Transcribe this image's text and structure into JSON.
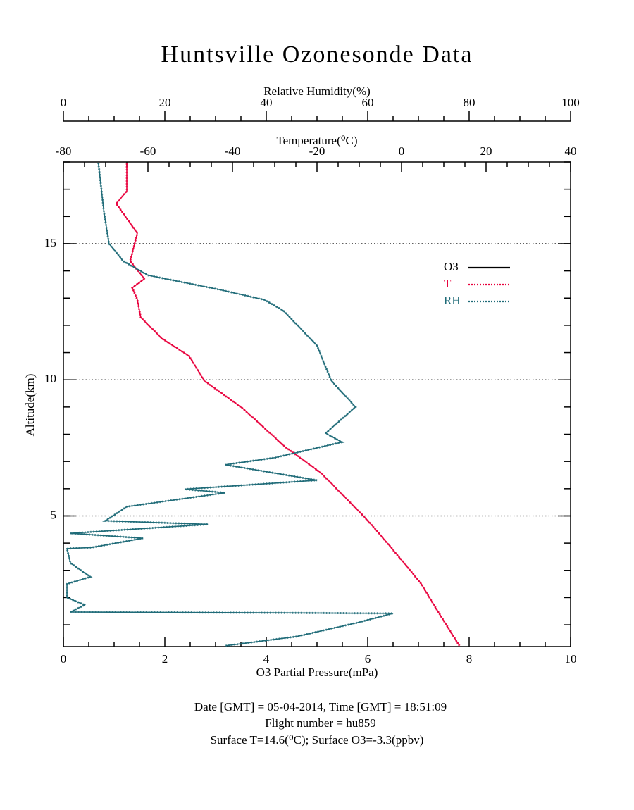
{
  "chart_data": {
    "type": "line",
    "title": "Huntsville Ozonesonde Data",
    "xlabel": "O3 Partial Pressure(mPa)",
    "xlim": [
      0,
      10
    ],
    "xticks": [
      0,
      2,
      4,
      6,
      8,
      10
    ],
    "x2label": "Relative Humidity(%)",
    "x2lim": [
      0,
      100
    ],
    "x2ticks": [
      0,
      20,
      40,
      60,
      80,
      100
    ],
    "x3label": "Temperature(⁰C)",
    "x3lim": [
      -80,
      40
    ],
    "x3ticks": [
      -80,
      -60,
      -40,
      -20,
      0,
      20,
      40
    ],
    "ylabel": "Altitude(km)",
    "ylim": [
      0.2,
      18
    ],
    "yticks": [
      5,
      10,
      15
    ],
    "grid": true,
    "legend": "upper right",
    "series": [
      {
        "name": "O3",
        "color": "#000000",
        "axis": "x",
        "values": [],
        "y": []
      },
      {
        "name": "T",
        "color": "#e8003c",
        "axis": "x3",
        "values": [
          13.7,
          8.3,
          4.7,
          -0.8,
          -5,
          -8.7,
          -19,
          -27.5,
          -37.5,
          -46.7,
          -50.3,
          -56.7,
          -61.7,
          -62.5,
          -63.7,
          -60.8,
          -64.2,
          -62.5,
          -67.5,
          -65,
          -65
        ],
        "y": [
          0.23,
          1.57,
          2.5,
          3.53,
          4.3,
          4.95,
          6.57,
          7.53,
          8.94,
          9.97,
          10.88,
          11.52,
          12.29,
          12.94,
          13.38,
          13.71,
          14.36,
          15.39,
          16.47,
          16.93,
          17.96
        ]
      },
      {
        "name": "RH",
        "color": "#1f6b78",
        "axis": "x2",
        "values": [
          32,
          46,
          58,
          65,
          1.4,
          4.2,
          0.7,
          0.7,
          5.3,
          1.4,
          0.7,
          5.6,
          15.7,
          1.4,
          28.5,
          8.3,
          12.5,
          31.9,
          23.9,
          50,
          31.9,
          41.7,
          54.9,
          51.7,
          57.6,
          52.8,
          50,
          43.3,
          39.6,
          30.6,
          16.7,
          11.8,
          9,
          8,
          6.9
        ],
        "y": [
          0.23,
          0.57,
          1.08,
          1.42,
          1.47,
          1.73,
          2.0,
          2.5,
          2.76,
          3.27,
          3.8,
          3.84,
          4.18,
          4.36,
          4.69,
          4.82,
          5.34,
          5.85,
          5.98,
          6.31,
          6.88,
          7.14,
          7.71,
          8.04,
          9.0,
          9.97,
          11.26,
          12.55,
          12.94,
          13.32,
          13.84,
          14.36,
          15.0,
          16.16,
          17.96
        ]
      }
    ],
    "notes": [
      "Date [GMT] = 05-04-2014,  Time [GMT] = 18:51:09",
      "Flight number = hu859",
      "Surface T=14.6(⁰C); Surface O3=-3.3(ppbv)"
    ]
  }
}
